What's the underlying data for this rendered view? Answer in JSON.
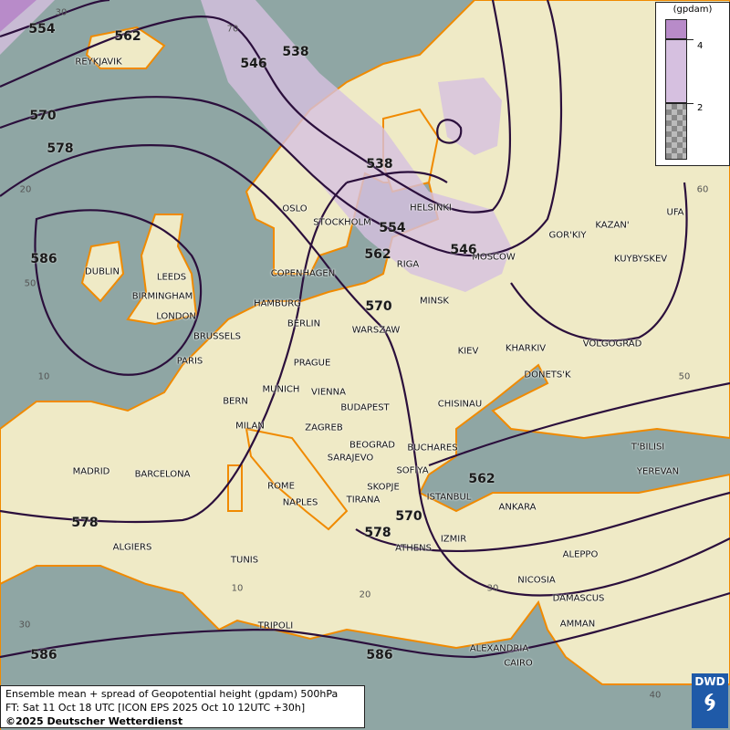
{
  "legend": {
    "unit": "(gpdam)",
    "ticks": [
      "4",
      "2"
    ],
    "colors": {
      "high": "#b88bc9",
      "mid": "#d6c0e0",
      "low": "checkerboard"
    }
  },
  "info": {
    "line1": "Ensemble mean + spread of Geopotential height (gpdam) 500hPa",
    "line2": "FT: Sat 11 Oct 18 UTC [ICON EPS 2025 Oct 10 12UTC +30h]",
    "line3": "©2025 Deutscher Wetterdienst"
  },
  "logo": {
    "text": "DWD"
  },
  "colors": {
    "sea": "#8fa6a4",
    "land": "#efeac6",
    "contour": "#2b0f3c",
    "coast": "#f08a00",
    "spread_mid": "#d6c0e0",
    "spread_high": "#b88bc9"
  },
  "cities": [
    "REYKJAVIK",
    "OSLO",
    "STOCKHOLM",
    "HELSINKI",
    "RIGA",
    "MOSCOW",
    "GOR'KIY",
    "KAZAN'",
    "UFA",
    "KUYBYSKEV",
    "COPENHAGEN",
    "DUBLIN",
    "LEEDS",
    "BIRMINGHAM",
    "LONDON",
    "HAMBURG",
    "BERLIN",
    "MINSK",
    "WARSZAW",
    "KIEV",
    "KHARKIV",
    "VOLGOGRAD",
    "BRUSSELS",
    "PARIS",
    "PRAGUE",
    "DONETS'K",
    "MUNICH",
    "VIENNA",
    "BERN",
    "BUDAPEST",
    "CHISINAU",
    "MILAN",
    "ZAGREB",
    "BEOGRAD",
    "BUCHARES",
    "T'BILISI",
    "MADRID",
    "BARCELONA",
    "SARAJEVO",
    "SOFIYA",
    "YEREVAN",
    "ROME",
    "SKOPJE",
    "ISTANBUL",
    "ANKARA",
    "NAPLES",
    "TIRANA",
    "ALGIERS",
    "ATHENS",
    "IZMIR",
    "ALEPPO",
    "TUNIS",
    "NICOSIA",
    "DAMASCUS",
    "AMMAN",
    "TRIPOLI",
    "ALEXANDRIA",
    "CAIRO"
  ],
  "contour_labels": [
    "554",
    "562",
    "546",
    "538",
    "570",
    "578",
    "538",
    "586",
    "546",
    "562",
    "554",
    "570",
    "570",
    "578",
    "578",
    "586",
    "586",
    "562"
  ],
  "grid_labels": [
    "30",
    "70",
    "20",
    "50",
    "10",
    "60",
    "50",
    "30",
    "10",
    "20",
    "30",
    "40"
  ]
}
